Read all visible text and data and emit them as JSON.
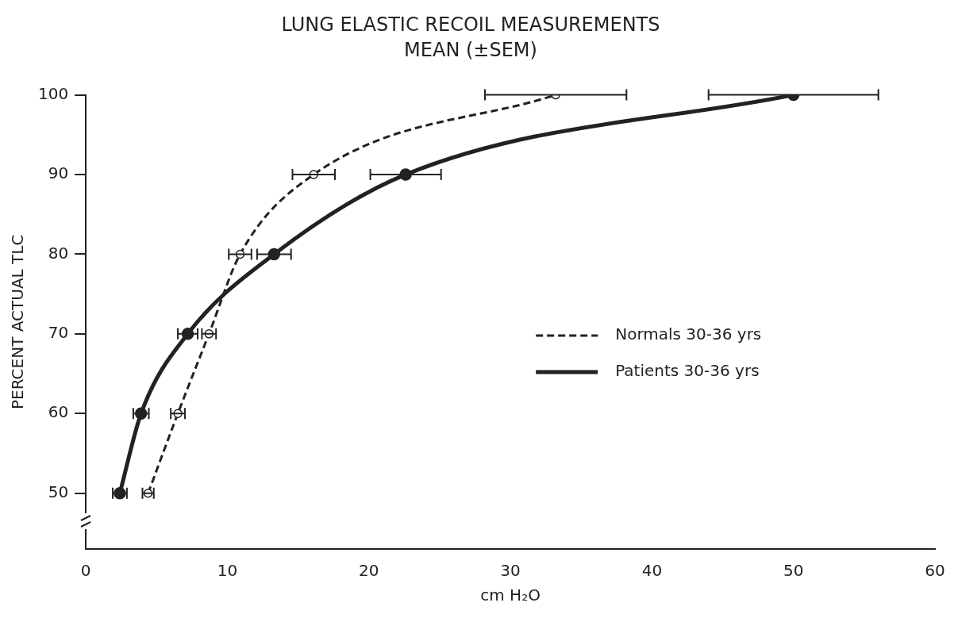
{
  "chart_data": {
    "type": "line",
    "title": "LUNG ELASTIC RECOIL MEASUREMENTS",
    "subtitle": "MEAN (±SEM)",
    "xlabel": "cm H₂O",
    "ylabel": "PERCENT ACTUAL TLC",
    "xlim": [
      0,
      60
    ],
    "xticks": [
      0,
      10,
      20,
      30,
      40,
      50,
      60
    ],
    "ylim": [
      43,
      100
    ],
    "yticks": [
      50,
      60,
      70,
      80,
      90,
      100
    ],
    "grid": false,
    "legend": "right",
    "marker": "circle",
    "series": [
      {
        "name": "Normals 30-36 yrs",
        "color": "#222222",
        "line_style": "dashed",
        "x": [
          4.4,
          6.5,
          8.7,
          10.9,
          16.1,
          33.2
        ],
        "values": [
          50,
          60,
          70,
          80,
          90,
          100
        ],
        "xerrors": [
          0.4,
          0.5,
          0.5,
          0.8,
          1.5,
          5
        ]
      },
      {
        "name": "Patients 30-36 yrs",
        "color": "#222222",
        "line_style": "solid",
        "x": [
          2.4,
          3.9,
          7.2,
          13.3,
          22.6,
          50
        ],
        "values": [
          50,
          60,
          70,
          80,
          90,
          100
        ],
        "xerrors": [
          0.5,
          0.55,
          0.7,
          1.2,
          2.5,
          6
        ]
      }
    ]
  }
}
